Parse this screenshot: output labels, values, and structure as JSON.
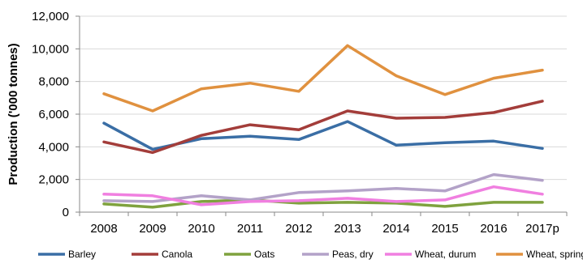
{
  "chart_data": {
    "type": "line",
    "title": "",
    "xlabel": "",
    "ylabel": "Production ('000 tonnes)",
    "categories": [
      "2008",
      "2009",
      "2010",
      "2011",
      "2012",
      "2013",
      "2014",
      "2015",
      "2016",
      "2017p"
    ],
    "ylim": [
      0,
      12000
    ],
    "yticks": [
      0,
      2000,
      4000,
      6000,
      8000,
      10000,
      12000
    ],
    "ytick_labels": [
      "0",
      "2,000",
      "4,000",
      "6,000",
      "8,000",
      "10,000",
      "12,000"
    ],
    "grid": true,
    "legend_position": "bottom",
    "series": [
      {
        "name": "Barley",
        "color": "#3a6ea5",
        "values": [
          5450,
          3850,
          4500,
          4650,
          4450,
          5550,
          4100,
          4250,
          4350,
          3900
        ]
      },
      {
        "name": "Canola",
        "color": "#a33d3a",
        "values": [
          4300,
          3650,
          4700,
          5350,
          5050,
          6200,
          5750,
          5800,
          6100,
          6800
        ]
      },
      {
        "name": "Oats",
        "color": "#7fa23e",
        "values": [
          500,
          300,
          650,
          750,
          550,
          600,
          550,
          350,
          600,
          600
        ]
      },
      {
        "name": "Peas, dry",
        "color": "#b3a2c8",
        "values": [
          700,
          650,
          1000,
          750,
          1200,
          1300,
          1450,
          1300,
          2300,
          1950
        ]
      },
      {
        "name": "Wheat, durum",
        "color": "#f07fe0",
        "values": [
          1100,
          1000,
          450,
          650,
          700,
          850,
          650,
          750,
          1550,
          1100
        ]
      },
      {
        "name": "Wheat, spring",
        "color": "#e0913f",
        "values": [
          7250,
          6200,
          7550,
          7900,
          7400,
          10200,
          8350,
          7200,
          8200,
          8700
        ]
      }
    ]
  }
}
